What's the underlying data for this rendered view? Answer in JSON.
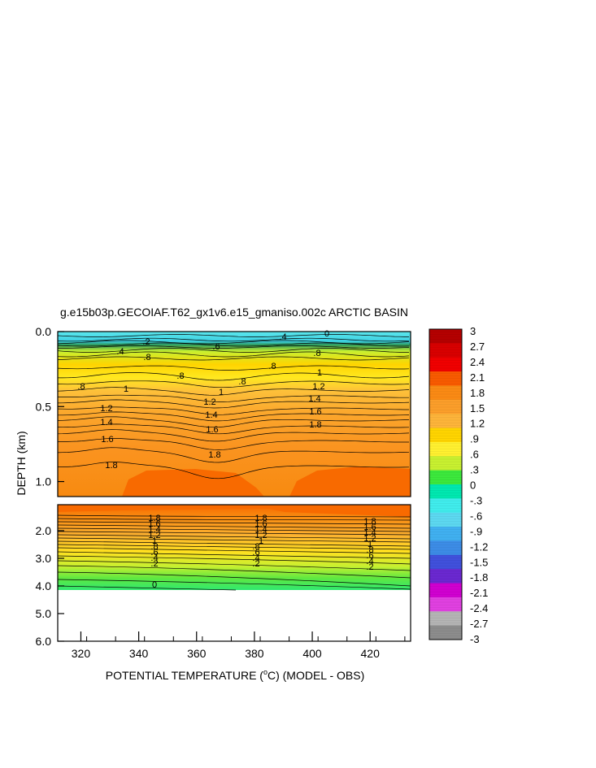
{
  "chart_data": {
    "type": "heatmap",
    "title": "g.e15b03p.GECOIAF.T62_gx1v6.e15_gmaniso.002c ARCTIC BASIN",
    "xlabel": "POTENTIAL TEMPERATURE (",
    "xlabel_unit": "o",
    "xlabel_tail": "C) (MODEL - OBS)",
    "ylabel": "DEPTH (km)",
    "xlim": [
      312,
      434
    ],
    "x_ticks": [
      "320",
      "340",
      "360",
      "380",
      "400",
      "420"
    ],
    "upper_panel": {
      "ylim": [
        0.0,
        1.1
      ],
      "y_ticks": [
        "0.0",
        "0.5",
        "1.0"
      ]
    },
    "lower_panel": {
      "ylim": [
        1.1,
        6.0
      ],
      "y_ticks": [
        "2.0",
        "3.0",
        "4.0",
        "5.0",
        "6.0"
      ]
    },
    "contour_labels_upper": [
      ".4",
      ".2",
      "0",
      ".4",
      ".6",
      ".8",
      ".8",
      ".8",
      ".8",
      ".8",
      ".8",
      "1",
      "1",
      "1",
      "1.2",
      "1.2",
      "1.2",
      "1.4",
      "1.4",
      "1.4",
      "1.6",
      "1.6",
      "1.6",
      "1.8",
      "1.8",
      "1.8"
    ],
    "contour_labels_lower": [
      "1.8",
      "1.6",
      "1.4",
      "1.2",
      "1",
      ".8",
      ".6",
      ".4",
      ".2",
      "0"
    ],
    "colorbar": {
      "labels": [
        "3",
        "2.7",
        "2.4",
        "2.1",
        "1.8",
        "1.5",
        "1.2",
        ".9",
        ".6",
        ".3",
        "0",
        "-.3",
        "-.6",
        "-.9",
        "-1.2",
        "-1.5",
        "-1.8",
        "-2.1",
        "-2.4",
        "-2.7",
        "-3"
      ],
      "colors": [
        "#b40000",
        "#d80000",
        "#f00000",
        "#f85a00",
        "#fa8a14",
        "#fb9e2a",
        "#fdb43a",
        "#ffd400",
        "#fff030",
        "#c8f030",
        "#3ce83c",
        "#00e8b0",
        "#40ecec",
        "#5cd8f0",
        "#40b0f0",
        "#3c8ce6",
        "#4050dc",
        "#6a28d0",
        "#d000d0",
        "#e040e0",
        "#b4b4b4",
        "#8c8c8c"
      ]
    }
  }
}
